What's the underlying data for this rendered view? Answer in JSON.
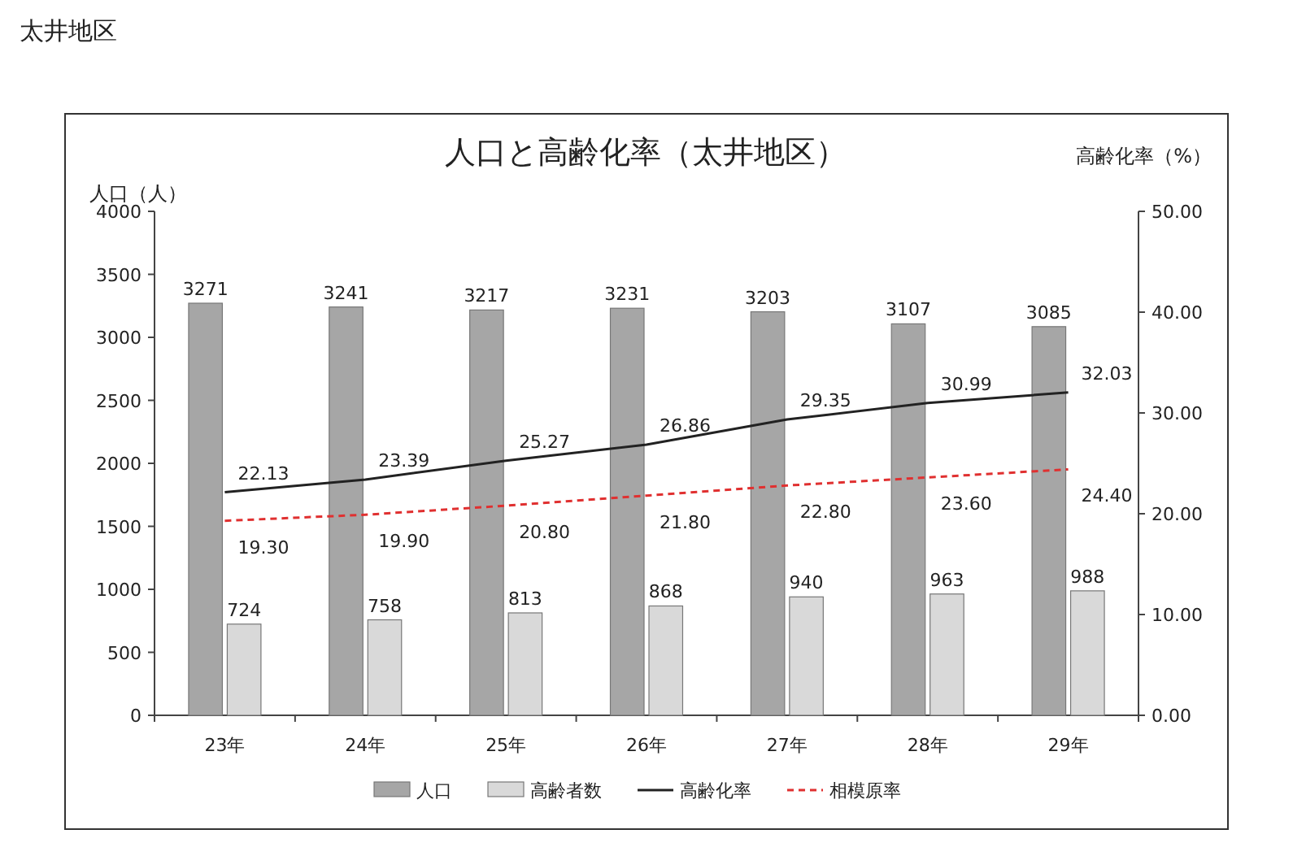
{
  "chart_data": {
    "type": "bar",
    "title": "人口と高齢化率（太井地区）",
    "ylabel": "人口（人）",
    "y2label": "高齢化率（%）",
    "annotations": [
      "太井地区"
    ],
    "categories": [
      "23年",
      "24年",
      "25年",
      "26年",
      "27年",
      "28年",
      "29年"
    ],
    "series": [
      {
        "name": "人口",
        "color": "#a6a6a6",
        "values": [
          3271,
          3241,
          3217,
          3231,
          3203,
          3107,
          3085
        ],
        "value_labels": [
          "3271",
          "3241",
          "3217",
          "3231",
          "3203",
          "3107",
          "3085"
        ]
      },
      {
        "name": "高齢者数",
        "color": "#d9d9d9",
        "values": [
          724,
          758,
          813,
          868,
          940,
          963,
          988
        ],
        "value_labels": [
          "724",
          "758",
          "813",
          "868",
          "940",
          "963",
          "988"
        ]
      },
      {
        "name": "高齢化率",
        "type": "line",
        "axis": "y2",
        "color": "#222222",
        "line_style": "solid",
        "values": [
          22.13,
          23.39,
          25.27,
          26.86,
          29.35,
          30.99,
          32.03
        ],
        "value_labels": [
          "22.13",
          "23.39",
          "25.27",
          "26.86",
          "29.35",
          "30.99",
          "32.03"
        ]
      },
      {
        "name": "相模原率",
        "type": "line",
        "axis": "y2",
        "color": "#e03030",
        "line_style": "dashed",
        "values": [
          19.3,
          19.9,
          20.8,
          21.8,
          22.8,
          23.6,
          24.4
        ],
        "value_labels": [
          "19.30",
          "19.90",
          "20.80",
          "21.80",
          "22.80",
          "23.60",
          "24.40"
        ]
      }
    ],
    "ylim": [
      0,
      4000
    ],
    "yticks": [
      0,
      500,
      1000,
      1500,
      2000,
      2500,
      3000,
      3500,
      4000
    ],
    "y2lim": [
      0,
      50
    ],
    "y2ticks": [
      {
        "value": 0,
        "label": "0.00"
      },
      {
        "value": 10,
        "label": "10.00"
      },
      {
        "value": 20,
        "label": "20.00"
      },
      {
        "value": 30,
        "label": "30.00"
      },
      {
        "value": 40,
        "label": "40.00"
      },
      {
        "value": 50,
        "label": "50.00"
      }
    ],
    "legend": "bottom"
  }
}
